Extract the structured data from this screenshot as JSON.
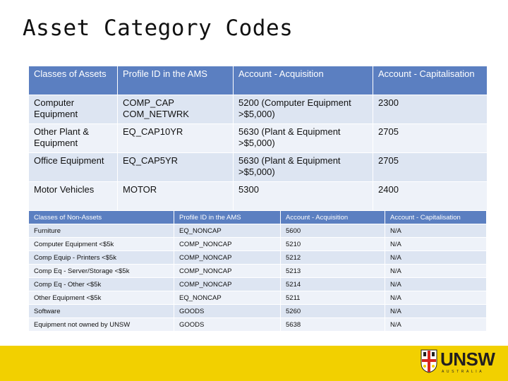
{
  "title": "Asset Category Codes",
  "assets_table": {
    "headers": [
      "Classes of Assets",
      "Profile ID in the AMS",
      "Account - Acquisition",
      "Account - Capitalisation"
    ],
    "rows": [
      [
        "Computer Equipment",
        "COMP_CAP COM_NETWRK",
        "5200 (Computer Equipment >$5,000)",
        "2300"
      ],
      [
        "Other Plant & Equipment",
        "EQ_CAP10YR",
        "5630 (Plant & Equipment >$5,000)",
        "2705"
      ],
      [
        "Office Equipment",
        "EQ_CAP5YR",
        "5630 (Plant & Equipment >$5,000)",
        "2705"
      ],
      [
        "Motor Vehicles",
        "MOTOR",
        "5300",
        "2400"
      ]
    ]
  },
  "non_assets_table": {
    "headers": [
      "Classes of Non-Assets",
      "Profile ID in the AMS",
      "Account - Acquisition",
      "Account - Capitalisation"
    ],
    "rows": [
      [
        "Furniture",
        "EQ_NONCAP",
        "5600",
        "N/A"
      ],
      [
        "Computer Equipment <$5k",
        "COMP_NONCAP",
        "5210",
        "N/A"
      ],
      [
        "Comp Equip - Printers <$5k",
        "COMP_NONCAP",
        "5212",
        "N/A"
      ],
      [
        "Comp Eq - Server/Storage <$5k",
        "COMP_NONCAP",
        "5213",
        "N/A"
      ],
      [
        "Comp Eq - Other <$5k",
        "COMP_NONCAP",
        "5214",
        "N/A"
      ],
      [
        "Other Equipment <$5k",
        "EQ_NONCAP",
        "5211",
        "N/A"
      ],
      [
        "Software",
        "GOODS",
        "5260",
        "N/A"
      ],
      [
        "Equipment not owned by UNSW",
        "GOODS",
        "5638",
        "N/A"
      ]
    ]
  },
  "footer": {
    "logo_text": "UNSW",
    "logo_subtext": "AUSTRALIA",
    "color": "#f2d000"
  }
}
